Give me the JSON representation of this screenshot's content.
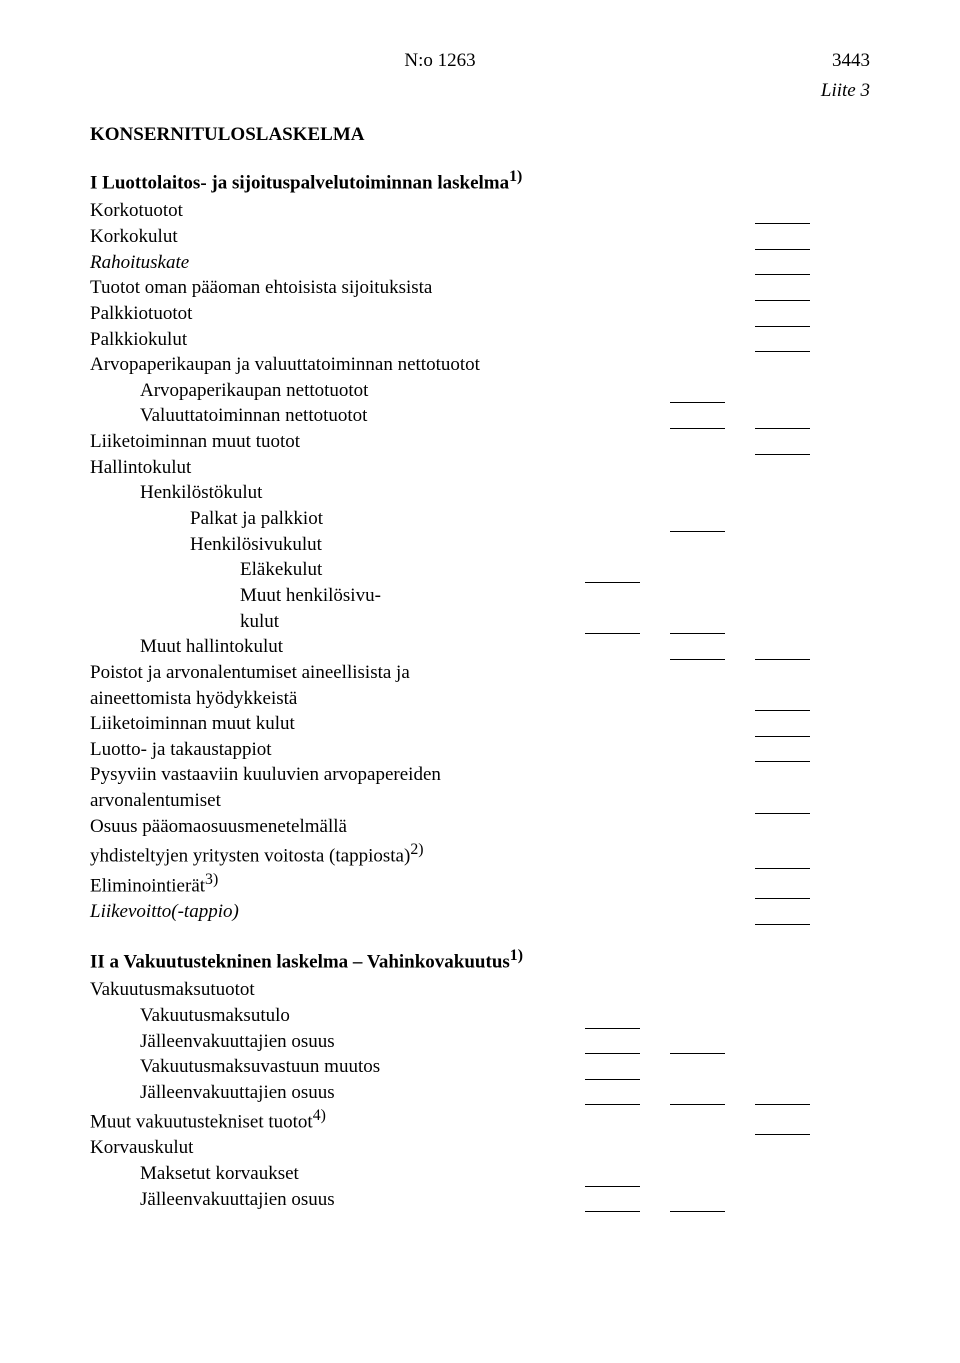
{
  "header": {
    "doc_no": "N:o 1263",
    "page_no": "3443",
    "liite": "Liite 3"
  },
  "title": "KONSERNITULOSLASKELMA",
  "section1": {
    "title": "I Luottolaitos- ja sijoituspalvelutoiminnan laskelma",
    "sup": "1)",
    "items": {
      "korkotuotot": "Korkotuotot",
      "korkokulut": "Korkokulut",
      "rahoituskate": "Rahoituskate",
      "tuotot_oman": "Tuotot oman pääoman ehtoisista sijoituksista",
      "palkkiotuotot": "Palkkiotuotot",
      "palkkiokulut": "Palkkiokulut",
      "arvopaperikaupan": "Arvopaperikaupan ja valuuttatoiminnan nettotuotot",
      "arvopaperikaupan_netto": "Arvopaperikaupan nettotuotot",
      "valuuttatoiminnan_netto": "Valuuttatoiminnan nettotuotot",
      "liiketoiminnan_muut_tuotot": "Liiketoiminnan muut tuotot",
      "hallintokulut": "Hallintokulut",
      "henkilostokulut": "Henkilöstökulut",
      "palkat": "Palkat ja palkkiot",
      "henkilosivukulut": "Henkilösivukulut",
      "elakekulut": "Eläkekulut",
      "muut_henkilosivu_a": "Muut henkilösivu-",
      "muut_henkilosivu_b": "kulut",
      "muut_hallintokulut": "Muut hallintokulut",
      "poistot_a": "Poistot ja arvonalentumiset aineellisista ja",
      "poistot_b": "aineettomista hyödykkeistä",
      "liiketoiminnan_muut_kulut": "Liiketoiminnan muut kulut",
      "luotto_takaustappiot": "Luotto- ja takaustappiot",
      "pysyviin_a": "Pysyviin vastaaviin kuuluvien arvopapereiden",
      "pysyviin_b": "arvonalentumiset",
      "osuus_a": "Osuus pääomaosuusmenetelmällä",
      "osuus_b": "yhdisteltyjen yritysten voitosta (tappiosta)",
      "osuus_sup": "2)",
      "eliminointierat": "Eliminointierät",
      "eliminointierat_sup": "3)",
      "liikevoitto": "Liikevoitto(-tappio)"
    }
  },
  "section2": {
    "title": "II a Vakuutustekninen laskelma – Vahinkovakuutus",
    "sup": "1)",
    "items": {
      "vakuutusmaksutuotot": "Vakuutusmaksutuotot",
      "vakuutusmaksutulo": "Vakuutusmaksutulo",
      "jalleen_osuus1": "Jälleenvakuuttajien osuus",
      "vakuutusmaksuvastuun": "Vakuutusmaksuvastuun muutos",
      "jalleen_osuus2": "Jälleenvakuuttajien osuus",
      "muut_vakuutustekniset": "Muut vakuutustekniset tuotot",
      "muut_vakuutustekniset_sup": "4)",
      "korvauskulut": "Korvauskulut",
      "maksetut_korvaukset": "Maksetut korvaukset",
      "jalleen_osuus3": "Jälleenvakuuttajien osuus"
    }
  }
}
